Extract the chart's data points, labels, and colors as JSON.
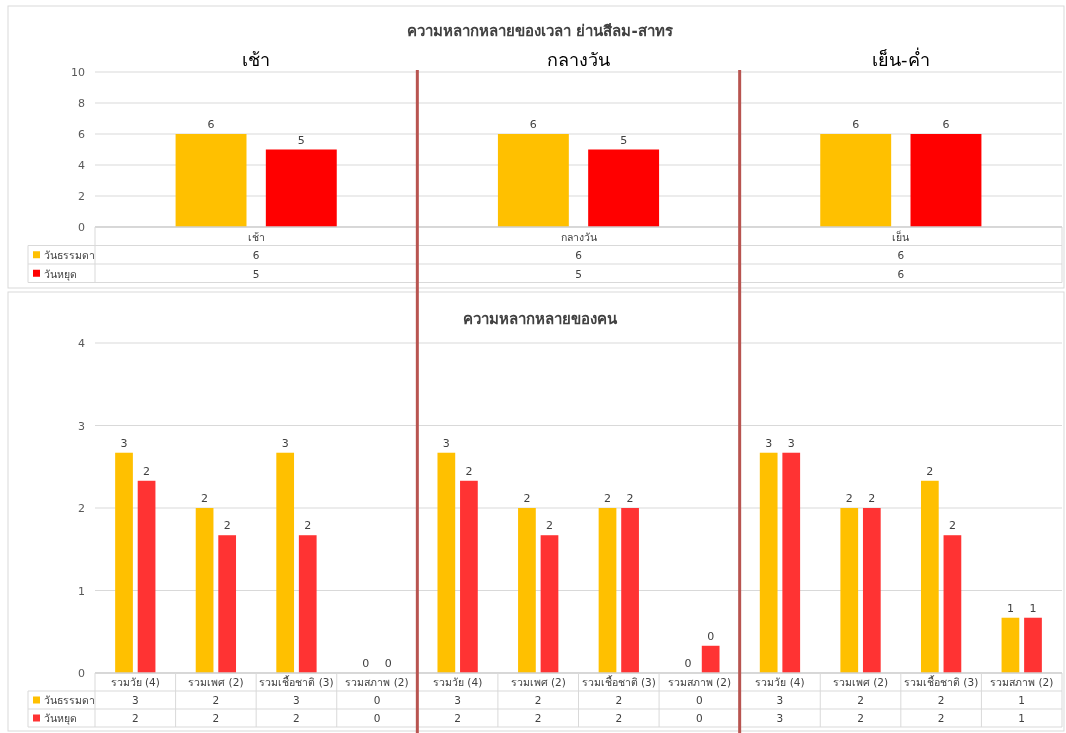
{
  "chart_data": [
    {
      "type": "bar",
      "title": "ความหลากหลายของเวลา ย่านสีลม-สาทร",
      "annotations": [
        "เช้า",
        "กลางวัน",
        "เย็น-ค่ำ"
      ],
      "categories": [
        "เช้า",
        "กลางวัน",
        "เย็น"
      ],
      "series": [
        {
          "name": "วันธรรมดา",
          "color": "#ffc000",
          "values": [
            6,
            6,
            6
          ],
          "value_labels": [
            "6",
            "6",
            "6"
          ]
        },
        {
          "name": "วันหยุด",
          "color": "#ff0000",
          "values": [
            5,
            5,
            6
          ],
          "value_labels": [
            "5",
            "5",
            "6"
          ]
        }
      ],
      "ylim": [
        0,
        10
      ],
      "yticks": [
        0,
        2,
        4,
        6,
        8,
        10
      ],
      "grid": "y",
      "legend": "bottom"
    },
    {
      "type": "bar",
      "title": "ความหลากหลายของคน",
      "categories": [
        "รวมวัย (4)",
        "รวมเพศ  (2)",
        "รวมเชื้อชาติ (3)",
        "รวมสภาพ  (2)",
        "รวมวัย (4)",
        "รวมเพศ  (2)",
        "รวมเชื้อชาติ (3)",
        "รวมสภาพ  (2)",
        "รวมวัย (4)",
        "รวมเพศ  (2)",
        "รวมเชื้อชาติ (3)",
        "รวมสภาพ  (2)"
      ],
      "series": [
        {
          "name": "วันธรรมดา",
          "color": "#ffc000",
          "values": [
            2.67,
            2.0,
            2.67,
            0,
            2.67,
            2.0,
            2.0,
            0,
            2.67,
            2.0,
            2.33,
            0.67
          ],
          "value_labels": [
            "3",
            "2",
            "3",
            "0",
            "3",
            "2",
            "2",
            "0",
            "3",
            "2",
            "2",
            "1"
          ]
        },
        {
          "name": "วันหยุด",
          "color": "#ff3333",
          "values": [
            2.33,
            1.67,
            1.67,
            0,
            2.33,
            1.67,
            2.0,
            0.33,
            2.67,
            2.0,
            1.67,
            0.67
          ],
          "value_labels": [
            "2",
            "2",
            "2",
            "0",
            "2",
            "2",
            "2",
            "0",
            "3",
            "2",
            "2",
            "1"
          ]
        }
      ],
      "ylim": [
        0,
        4
      ],
      "yticks": [
        0,
        1,
        2,
        3,
        4
      ],
      "grid": "y",
      "legend": "bottom"
    }
  ]
}
